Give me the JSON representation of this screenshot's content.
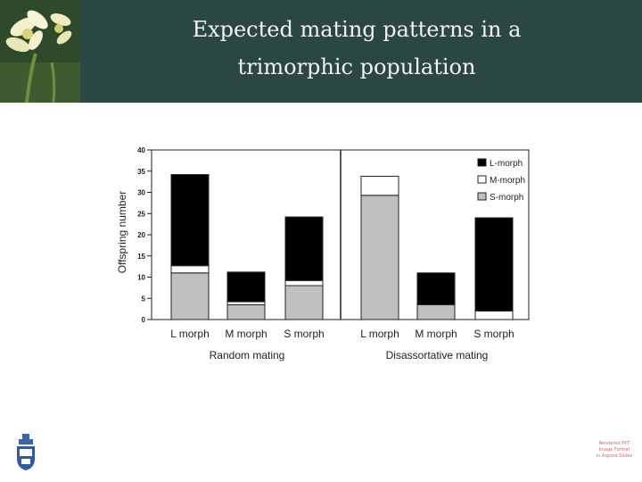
{
  "slide": {
    "title_line1": "Expected mating patterns in a",
    "title_line2": "trimorphic population",
    "corner_stamp": [
      "Rendered PPT",
      "Image Format",
      "in Aspose.Slides"
    ]
  },
  "icons": {
    "header_image": "daffodil-flower-icon",
    "footer_logo": "university-crest-icon"
  },
  "chart_data": {
    "type": "bar",
    "stacked": true,
    "ylabel": "Offspring number",
    "ylim": [
      0,
      40
    ],
    "yticks": [
      0,
      5,
      10,
      15,
      20,
      25,
      30,
      35,
      40
    ],
    "categories": [
      "L morph",
      "M morph",
      "S morph"
    ],
    "panels": [
      {
        "name": "Random mating",
        "series": [
          {
            "name": "S-morph",
            "color": "#c0c0c0",
            "values": [
              11,
              3.5,
              8
            ]
          },
          {
            "name": "M-morph",
            "color": "#ffffff",
            "values": [
              1.7,
              0.7,
              1.2
            ]
          },
          {
            "name": "L-morph",
            "color": "#000000",
            "values": [
              21.5,
              7,
              15
            ]
          }
        ]
      },
      {
        "name": "Disassortative mating",
        "series": [
          {
            "name": "S-morph",
            "color": "#c0c0c0",
            "values": [
              29.3,
              3.5,
              0
            ]
          },
          {
            "name": "M-morph",
            "color": "#ffffff",
            "values": [
              4.5,
              0,
              2
            ]
          },
          {
            "name": "L-morph",
            "color": "#000000",
            "values": [
              0,
              7.5,
              22
            ]
          }
        ]
      }
    ],
    "legend": {
      "placement": "top-right",
      "entries": [
        {
          "label": "L-morph",
          "color": "#000000"
        },
        {
          "label": "M-morph",
          "color": "#ffffff"
        },
        {
          "label": "S-morph",
          "color": "#c0c0c0"
        }
      ]
    }
  }
}
